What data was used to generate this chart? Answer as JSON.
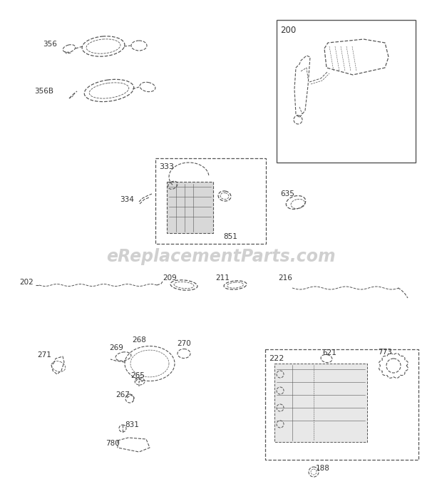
{
  "bg_color": "#ffffff",
  "fig_width": 6.2,
  "fig_height": 6.93,
  "dpi": 100,
  "watermark": "eReplacementParts.com",
  "watermark_color": "#c8c8c8",
  "watermark_alpha": 0.85,
  "text_color": "#333333",
  "part_color": "#555555",
  "part_lw": 0.9
}
